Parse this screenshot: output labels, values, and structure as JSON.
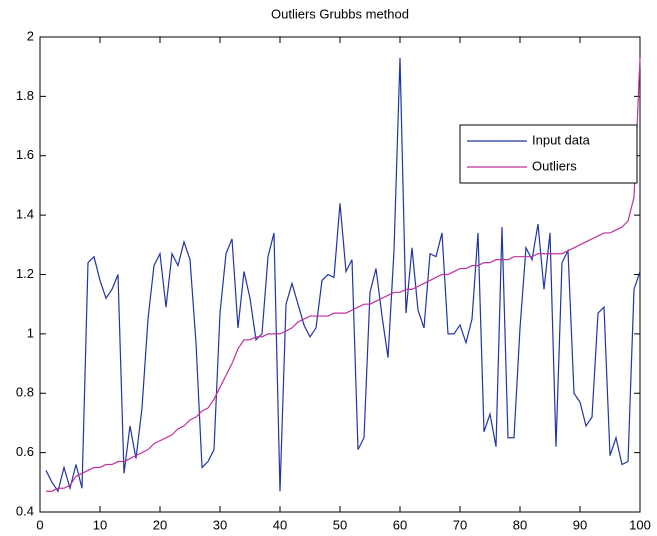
{
  "chart_data": {
    "type": "line",
    "title": "Outliers Grubbs method",
    "x": [
      1,
      2,
      3,
      4,
      5,
      6,
      7,
      8,
      9,
      10,
      11,
      12,
      13,
      14,
      15,
      16,
      17,
      18,
      19,
      20,
      21,
      22,
      23,
      24,
      25,
      26,
      27,
      28,
      29,
      30,
      31,
      32,
      33,
      34,
      35,
      36,
      37,
      38,
      39,
      40,
      41,
      42,
      43,
      44,
      45,
      46,
      47,
      48,
      49,
      50,
      51,
      52,
      53,
      54,
      55,
      56,
      57,
      58,
      59,
      60,
      61,
      62,
      63,
      64,
      65,
      66,
      67,
      68,
      69,
      70,
      71,
      72,
      73,
      74,
      75,
      76,
      77,
      78,
      79,
      80,
      81,
      82,
      83,
      84,
      85,
      86,
      87,
      88,
      89,
      90,
      91,
      92,
      93,
      94,
      95,
      96,
      97,
      98,
      99,
      100
    ],
    "series": [
      {
        "name": "Input data",
        "color": "#2035a0",
        "values": [
          0.54,
          0.5,
          0.47,
          0.55,
          0.48,
          0.56,
          0.48,
          1.24,
          1.26,
          1.18,
          1.12,
          1.15,
          1.2,
          0.53,
          0.69,
          0.58,
          0.75,
          1.05,
          1.23,
          1.27,
          1.09,
          1.27,
          1.23,
          1.31,
          1.25,
          0.97,
          0.55,
          0.57,
          0.61,
          1.07,
          1.27,
          1.32,
          1.02,
          1.21,
          1.12,
          0.98,
          1.0,
          1.26,
          1.34,
          0.47,
          1.1,
          1.17,
          1.1,
          1.03,
          0.99,
          1.02,
          1.18,
          1.2,
          1.19,
          1.44,
          1.21,
          1.25,
          0.61,
          0.65,
          1.14,
          1.22,
          1.06,
          0.92,
          1.28,
          1.93,
          1.07,
          1.29,
          1.08,
          1.02,
          1.27,
          1.26,
          1.34,
          1.0,
          1.0,
          1.03,
          0.97,
          1.05,
          1.34,
          0.67,
          0.73,
          0.62,
          1.36,
          0.65,
          0.65,
          1.02,
          1.29,
          1.25,
          1.37,
          1.15,
          1.34,
          0.62,
          1.24,
          1.28,
          0.8,
          0.77,
          0.69,
          0.72,
          1.07,
          1.09,
          0.59,
          0.65,
          0.56,
          0.57,
          1.15,
          1.21
        ]
      },
      {
        "name": "Outliers",
        "color": "#c0309f",
        "values": [
          0.47,
          0.47,
          0.48,
          0.48,
          0.49,
          0.52,
          0.53,
          0.54,
          0.55,
          0.55,
          0.56,
          0.56,
          0.57,
          0.57,
          0.58,
          0.59,
          0.6,
          0.61,
          0.63,
          0.64,
          0.65,
          0.66,
          0.68,
          0.69,
          0.71,
          0.72,
          0.74,
          0.75,
          0.78,
          0.82,
          0.86,
          0.9,
          0.95,
          0.98,
          0.98,
          0.99,
          0.99,
          1,
          1,
          1,
          1.01,
          1.02,
          1.04,
          1.05,
          1.06,
          1.06,
          1.06,
          1.06,
          1.07,
          1.07,
          1.07,
          1.08,
          1.09,
          1.1,
          1.1,
          1.11,
          1.12,
          1.13,
          1.14,
          1.14,
          1.15,
          1.15,
          1.16,
          1.17,
          1.18,
          1.19,
          1.2,
          1.2,
          1.21,
          1.22,
          1.22,
          1.23,
          1.23,
          1.24,
          1.24,
          1.25,
          1.25,
          1.25,
          1.26,
          1.26,
          1.26,
          1.26,
          1.27,
          1.27,
          1.27,
          1.27,
          1.27,
          1.28,
          1.29,
          1.3,
          1.31,
          1.32,
          1.33,
          1.34,
          1.34,
          1.35,
          1.36,
          1.38,
          1.46,
          1.93
        ]
      }
    ],
    "xlim": [
      0,
      100
    ],
    "xticks": [
      0,
      10,
      20,
      30,
      40,
      50,
      60,
      70,
      80,
      90,
      100
    ],
    "ylim": [
      0.4,
      2
    ],
    "yticks": [
      0.4,
      0.6,
      0.8,
      1,
      1.2,
      1.4,
      1.6,
      1.8,
      2
    ],
    "legend": "upper-right"
  }
}
